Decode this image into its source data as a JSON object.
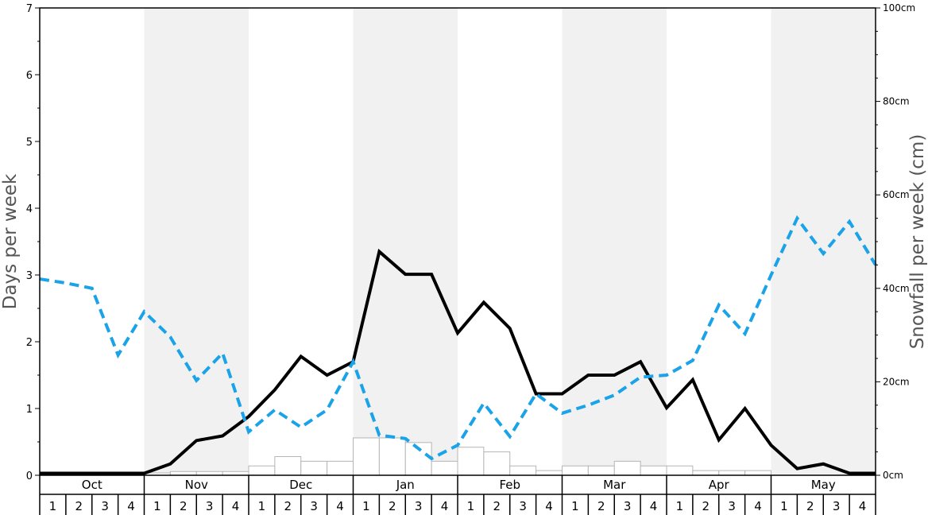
{
  "chart_data": {
    "type": "line",
    "xlabel": "",
    "ylabel_left": "Days per week",
    "ylabel_right": "Snowfall per week (cm)",
    "ylim_left": [
      0,
      7
    ],
    "ylim_right": [
      0,
      100
    ],
    "left_ticks": [
      "0",
      "1",
      "2",
      "3",
      "4",
      "5",
      "6",
      "7"
    ],
    "right_ticks": [
      "0cm",
      "20cm",
      "40cm",
      "60cm",
      "80cm",
      "100cm"
    ],
    "months": [
      "Oct",
      "Nov",
      "Dec",
      "Jan",
      "Feb",
      "Mar",
      "Apr",
      "May"
    ],
    "weeks_per_month": [
      "1",
      "2",
      "3",
      "4"
    ],
    "series": [
      {
        "kind": "line",
        "axis": "left",
        "color": "#000000",
        "style": "solid",
        "values": [
          0.03,
          0.03,
          0.03,
          0.03,
          0.03,
          0.17,
          0.52,
          0.59,
          0.88,
          1.28,
          1.78,
          1.5,
          1.7,
          3.35,
          3.01,
          3.01,
          2.13,
          2.59,
          2.2,
          1.22,
          1.22,
          1.5,
          1.5,
          1.7,
          1.01,
          1.43,
          0.53,
          1.0,
          0.45,
          0.1,
          0.17,
          0.03,
          0.03
        ]
      },
      {
        "kind": "line",
        "axis": "left",
        "color": "#1aa3e8",
        "style": "dashed",
        "values": [
          2.94,
          2.88,
          2.8,
          1.8,
          2.45,
          2.07,
          1.42,
          1.83,
          0.65,
          0.98,
          0.72,
          0.98,
          1.7,
          0.6,
          0.55,
          0.25,
          0.45,
          1.08,
          0.58,
          1.22,
          0.93,
          1.05,
          1.2,
          1.47,
          1.5,
          1.72,
          2.55,
          2.12,
          3.0,
          3.85,
          3.32,
          3.8,
          3.15
        ]
      },
      {
        "kind": "bar",
        "axis": "right",
        "values": [
          0,
          0,
          0,
          0,
          0.5,
          0.8,
          0.8,
          0.8,
          2,
          4,
          3,
          3,
          8,
          8,
          7,
          3,
          6,
          5,
          2,
          1,
          2,
          2,
          3,
          2,
          2,
          1,
          1,
          1,
          0,
          0,
          0,
          0
        ]
      }
    ]
  }
}
